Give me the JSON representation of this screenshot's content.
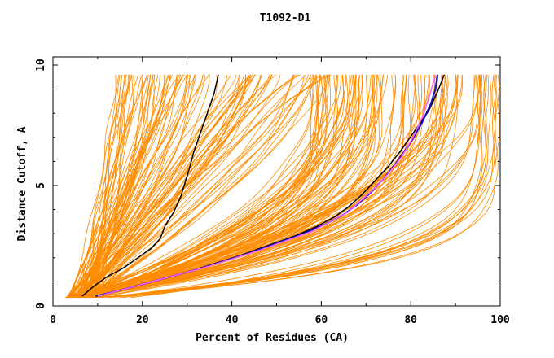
{
  "chart_data": {
    "type": "line",
    "title": "T1092-D1",
    "xlabel": "Percent of Residues (CA)",
    "ylabel": "Distance Cutoff, A",
    "xlim": [
      0,
      100
    ],
    "ylim": [
      0,
      10
    ],
    "x_ticks": [
      "0",
      "20",
      "40",
      "60",
      "80",
      "100"
    ],
    "y_ticks": [
      "0",
      "5",
      "10"
    ],
    "grid": false,
    "colors": {
      "background_curves": "#ff8c00",
      "highlight_black": "#000000",
      "highlight_blue": "#1010c0",
      "highlight_pink": "#ff60ff"
    },
    "series": [
      {
        "color": "#000000",
        "x": [
          6.5,
          9,
          12,
          16,
          19,
          22,
          24,
          25,
          27,
          28.5,
          29.5,
          30.5,
          31.5,
          33,
          34.5,
          36,
          37
        ],
        "y": [
          0.4,
          0.8,
          1.2,
          1.6,
          2.0,
          2.4,
          2.8,
          3.3,
          3.9,
          4.5,
          5.1,
          5.7,
          6.4,
          7.2,
          8.0,
          8.8,
          9.6
        ]
      },
      {
        "color": "#000000",
        "x": [
          10,
          15,
          20,
          25,
          30,
          36,
          42,
          48,
          54,
          59,
          63,
          66,
          69,
          72,
          75,
          78,
          81,
          84,
          86,
          87.5
        ],
        "y": [
          0.4,
          0.65,
          0.9,
          1.15,
          1.4,
          1.75,
          2.1,
          2.5,
          2.9,
          3.3,
          3.7,
          4.1,
          4.6,
          5.2,
          5.8,
          6.5,
          7.3,
          8.1,
          8.9,
          9.6
        ]
      },
      {
        "color": "#1010c0",
        "x": [
          9.5,
          15,
          20,
          26,
          32,
          38,
          44,
          50,
          56,
          61,
          65,
          68,
          71,
          74,
          77,
          80,
          82.5,
          84.5,
          85.5,
          86
        ],
        "y": [
          0.4,
          0.65,
          0.9,
          1.2,
          1.5,
          1.85,
          2.2,
          2.6,
          3.0,
          3.4,
          3.8,
          4.2,
          4.7,
          5.3,
          6.0,
          6.8,
          7.6,
          8.4,
          9.0,
          9.6
        ]
      },
      {
        "color": "#ff60ff",
        "x": [
          10,
          16,
          22,
          28,
          34,
          40,
          46,
          52,
          58,
          62,
          66,
          69,
          72,
          75,
          78,
          80.5,
          82.5,
          84,
          85.5
        ],
        "y": [
          0.4,
          0.7,
          1.0,
          1.3,
          1.6,
          1.95,
          2.3,
          2.7,
          3.1,
          3.5,
          3.9,
          4.4,
          4.9,
          5.5,
          6.2,
          7.0,
          7.8,
          8.6,
          9.6
        ]
      }
    ],
    "background_curves": {
      "color": "#ff8c00",
      "count": 220,
      "seed": 1092
    }
  }
}
